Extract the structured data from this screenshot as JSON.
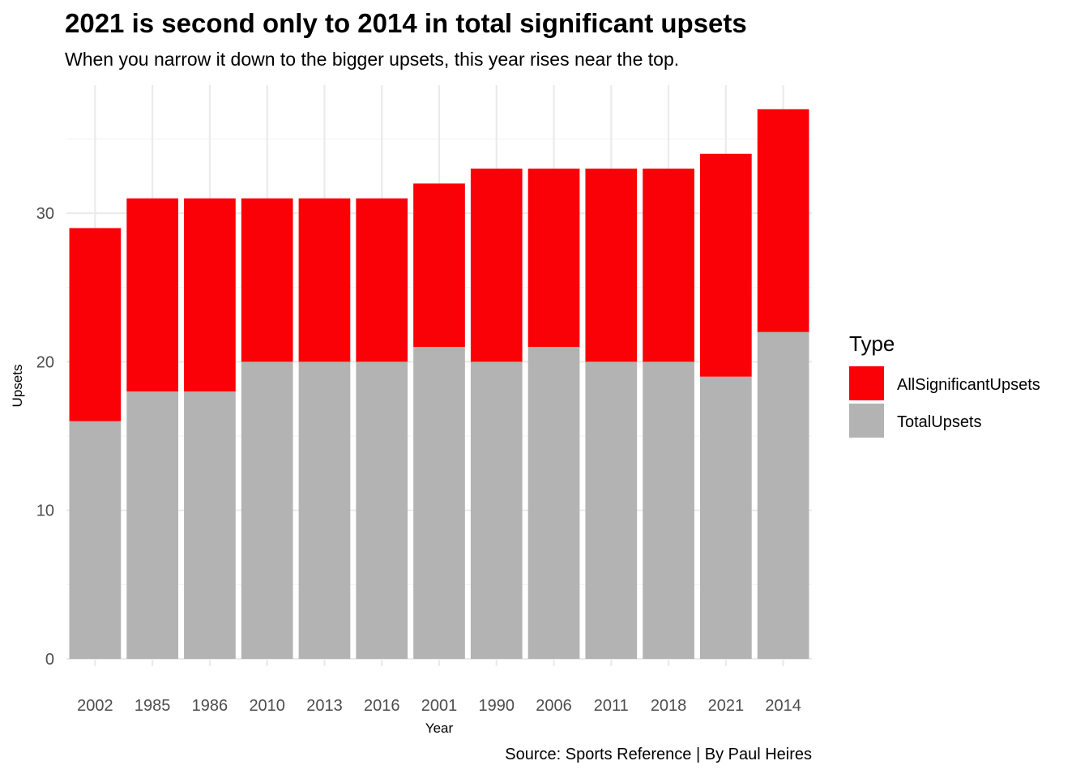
{
  "chart_data": {
    "type": "bar",
    "stacked": true,
    "title": "2021 is second only to 2014 in total significant upsets",
    "subtitle": "When you narrow it down to the bigger upsets, this year rises near the top.",
    "caption": "Source: Sports Reference | By Paul Heires",
    "xlabel": "Year",
    "ylabel": "Upsets",
    "categories": [
      "2002",
      "1985",
      "1986",
      "2010",
      "2013",
      "2016",
      "2001",
      "1990",
      "2006",
      "2011",
      "2018",
      "2021",
      "2014"
    ],
    "series": [
      {
        "name": "TotalUpsets",
        "color": "#b3b3b3",
        "values": [
          16,
          18,
          18,
          20,
          20,
          20,
          21,
          20,
          21,
          20,
          20,
          19,
          22
        ]
      },
      {
        "name": "AllSignificantUpsets",
        "color": "#fa0007",
        "values": [
          13,
          13,
          13,
          11,
          11,
          11,
          11,
          13,
          12,
          13,
          13,
          15,
          15
        ]
      }
    ],
    "ylim": [
      0,
      38.5
    ],
    "yticks": [
      0,
      10,
      20,
      30
    ],
    "grid": true,
    "legend": {
      "title": "Type",
      "position": "right",
      "entries": [
        "AllSignificantUpsets",
        "TotalUpsets"
      ]
    }
  }
}
